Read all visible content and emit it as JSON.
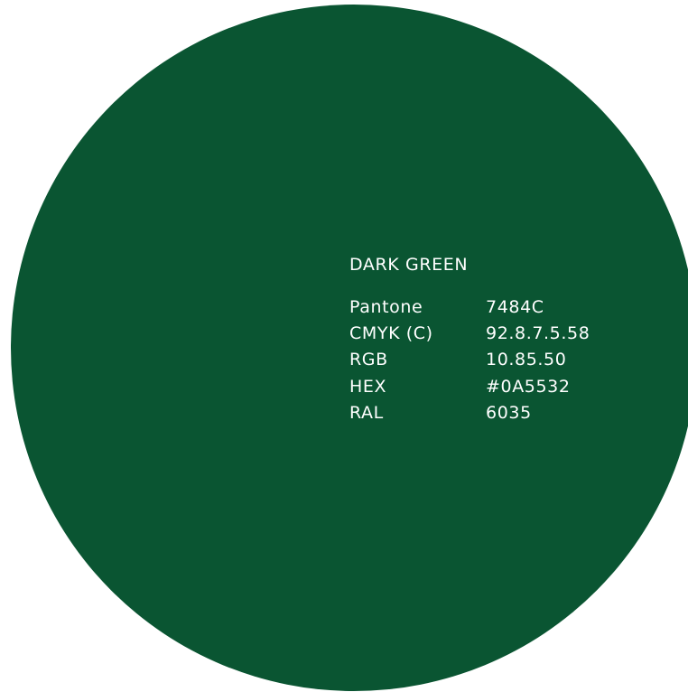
{
  "swatch": {
    "color": "#0A5532",
    "name": "DARK GREEN",
    "specs": [
      {
        "label": "Pantone",
        "value": "7484C"
      },
      {
        "label": "CMYK (C)",
        "value": "92.8.7.5.58"
      },
      {
        "label": "RGB",
        "value": "10.85.50"
      },
      {
        "label": "HEX",
        "value": "#0A5532"
      },
      {
        "label": "RAL",
        "value": "6035"
      }
    ]
  }
}
